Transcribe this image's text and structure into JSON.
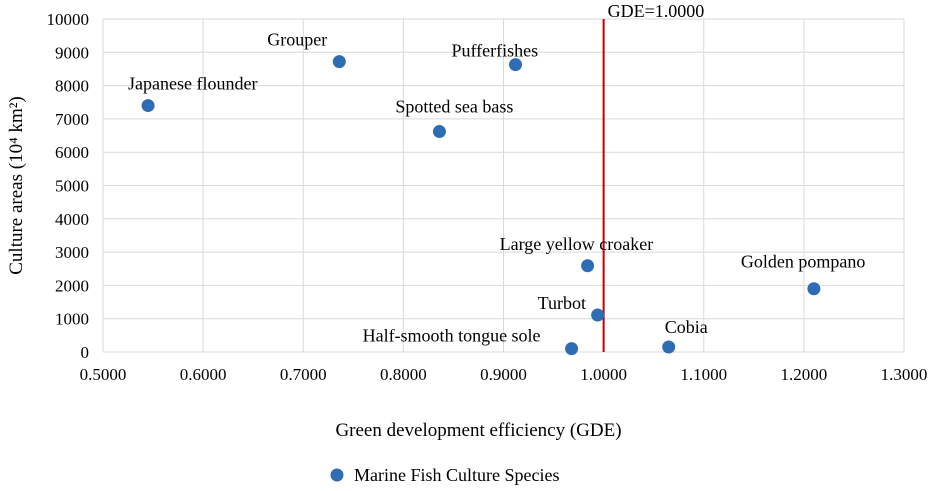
{
  "chart_data": {
    "type": "scatter",
    "title": "",
    "xlabel": "Green development efficiency (GDE)",
    "ylabel": "Culture areas (10⁴ km²)",
    "xlim": [
      0.5,
      1.3
    ],
    "ylim": [
      0,
      10000
    ],
    "xticks": [
      "0.5000",
      "0.6000",
      "0.7000",
      "0.8000",
      "0.9000",
      "1.0000",
      "1.1000",
      "1.2000",
      "1.3000"
    ],
    "yticks": [
      "0",
      "1000",
      "2000",
      "3000",
      "4000",
      "5000",
      "6000",
      "7000",
      "8000",
      "9000",
      "10000"
    ],
    "grid": true,
    "legend_position": "bottom",
    "series": [
      {
        "name": "Marine Fish Culture Species",
        "color": "#2e6db4",
        "points": [
          {
            "label": "Japanese flounder",
            "x": 0.545,
            "y": 7400
          },
          {
            "label": "Grouper",
            "x": 0.736,
            "y": 8720
          },
          {
            "label": "Pufferfishes",
            "x": 0.912,
            "y": 8630
          },
          {
            "label": "Spotted sea bass",
            "x": 0.836,
            "y": 6620
          },
          {
            "label": "Large yellow croaker",
            "x": 0.984,
            "y": 2590
          },
          {
            "label": "Golden pompano",
            "x": 1.21,
            "y": 1900
          },
          {
            "label": "Turbot",
            "x": 0.994,
            "y": 1110
          },
          {
            "label": "Half-smooth tongue sole",
            "x": 0.968,
            "y": 100
          },
          {
            "label": "Cobia",
            "x": 1.065,
            "y": 150
          }
        ]
      }
    ],
    "reference_line": {
      "x": 1.0,
      "label": "GDE=1.0000",
      "color": "#c00000"
    }
  }
}
